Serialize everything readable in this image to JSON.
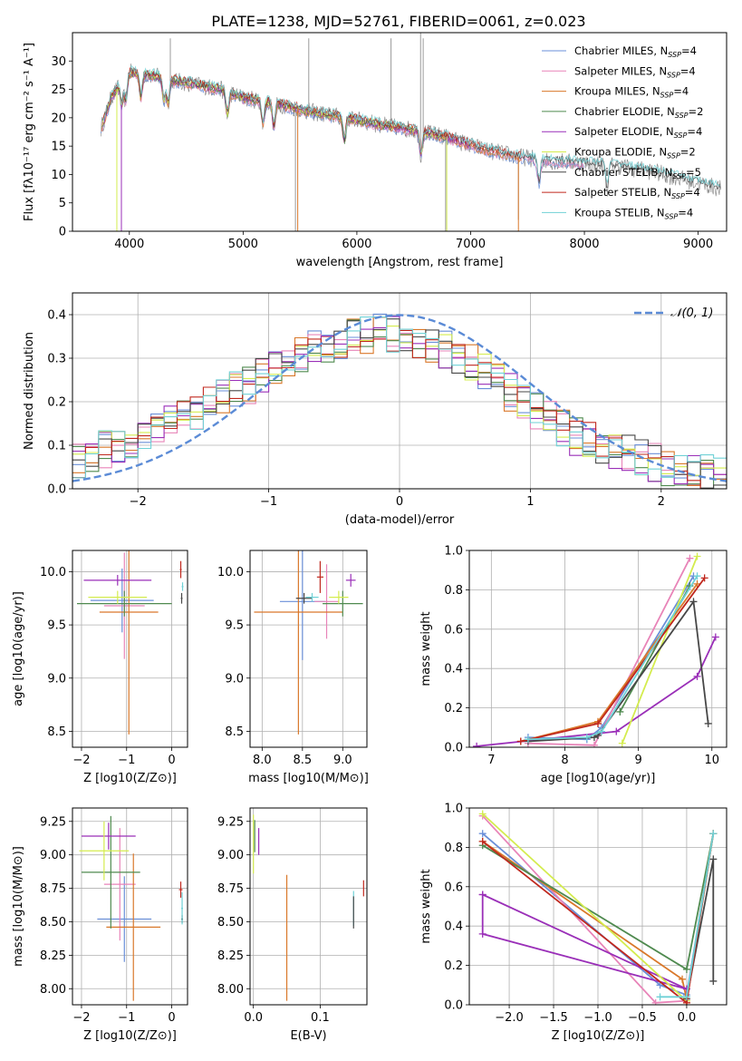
{
  "figure": {
    "title": "PLATE=1238, MJD=52761, FIBERID=0061, z=0.023"
  },
  "series_names": [
    "Chabrier MILES",
    "Salpeter MILES",
    "Kroupa MILES",
    "Chabrier ELODIE",
    "Salpeter ELODIE",
    "Kroupa ELODIE",
    "Chabrier STELIB",
    "Salpeter STELIB",
    "Kroupa STELIB"
  ],
  "series_colors": [
    "#6a8fd8",
    "#e884b8",
    "#d9782a",
    "#4f8a4f",
    "#9a2fb8",
    "#d4ec4e",
    "#474747",
    "#c0281e",
    "#6fd1d6"
  ],
  "chart_data": [
    {
      "id": "spectrum",
      "type": "line",
      "xlabel": "wavelength [Angstrom, rest frame]",
      "ylabel": "Flux [fλ10⁻¹⁷ erg cm⁻² s⁻¹ A⁻¹]",
      "xlim": [
        3500,
        9250
      ],
      "ylim": [
        0,
        35
      ],
      "xticks": [
        4000,
        5000,
        6000,
        7000,
        8000,
        9000
      ],
      "yticks": [
        0,
        5,
        10,
        15,
        20,
        25,
        30
      ],
      "legend": [
        "Chabrier MILES, N_SSP=4",
        "Salpeter MILES, N_SSP=4",
        "Kroupa MILES, N_SSP=4",
        "Chabrier ELODIE, N_SSP=2",
        "Salpeter ELODIE, N_SSP=4",
        "Kroupa ELODIE, N_SSP=2",
        "Chabrier STELIB, N_SSP=5",
        "Salpeter STELIB, N_SSP=4",
        "Kroupa STELIB, N_SSP=4"
      ],
      "legend_position": "top-right",
      "continuum": {
        "x": [
          3750,
          3850,
          4000,
          4200,
          4400,
          4600,
          4800,
          5000,
          5300,
          5600,
          5900,
          6200,
          6500,
          6800,
          7100,
          7400,
          7700,
          8000,
          8300,
          8600,
          8900,
          9200
        ],
        "y": [
          18,
          24,
          28,
          27.5,
          26.5,
          25.8,
          25,
          23.5,
          22.5,
          21,
          20,
          18.8,
          17.8,
          16.5,
          14.5,
          13.2,
          12.4,
          12,
          11.5,
          10.5,
          9,
          7.5
        ]
      }
    },
    {
      "id": "residuals",
      "type": "line",
      "xlabel": "(data-model)/error",
      "ylabel": "Normed distribution",
      "xlim": [
        -2.5,
        2.5
      ],
      "ylim": [
        0,
        0.45
      ],
      "xticks": [
        -2,
        -1,
        0,
        1,
        2
      ],
      "yticks": [
        0.0,
        0.1,
        0.2,
        0.3,
        0.4
      ],
      "grid": true,
      "legend": [
        "𝒩(0, 1)"
      ],
      "legend_position": "top-right",
      "bins": [
        -2.5,
        -2.4,
        -2.3,
        -2.2,
        -2.1,
        -2.0,
        -1.9,
        -1.8,
        -1.7,
        -1.6,
        -1.5,
        -1.4,
        -1.3,
        -1.2,
        -1.1,
        -1.0,
        -0.9,
        -0.8,
        -0.7,
        -0.6,
        -0.5,
        -0.4,
        -0.3,
        -0.2,
        -0.1,
        0.0,
        0.1,
        0.2,
        0.3,
        0.4,
        0.5,
        0.6,
        0.7,
        0.8,
        0.9,
        1.0,
        1.1,
        1.2,
        1.3,
        1.4,
        1.5,
        1.6,
        1.7,
        1.8,
        1.9,
        2.0,
        2.1,
        2.2,
        2.3,
        2.4,
        2.5
      ],
      "envelope": [
        0.06,
        0.08,
        0.09,
        0.09,
        0.1,
        0.12,
        0.13,
        0.15,
        0.16,
        0.17,
        0.19,
        0.21,
        0.23,
        0.24,
        0.26,
        0.28,
        0.3,
        0.31,
        0.32,
        0.33,
        0.34,
        0.35,
        0.355,
        0.36,
        0.355,
        0.35,
        0.34,
        0.33,
        0.32,
        0.31,
        0.29,
        0.27,
        0.25,
        0.22,
        0.2,
        0.18,
        0.16,
        0.14,
        0.12,
        0.11,
        0.1,
        0.09,
        0.08,
        0.07,
        0.06,
        0.05,
        0.05,
        0.04,
        0.035,
        0.03
      ]
    },
    {
      "id": "age-vs-Z",
      "type": "scatter",
      "xlabel": "Z [log10(Z/Z⊙)]",
      "ylabel": "age  [log10(age/yr)]",
      "xlim": [
        -2.2,
        0.35
      ],
      "ylim": [
        8.35,
        10.2
      ],
      "xticks": [
        -2,
        -1,
        0
      ],
      "yticks": [
        8.5,
        9.0,
        9.5,
        10.0
      ],
      "grid": true,
      "points": [
        {
          "x": -1.1,
          "y": 9.73,
          "xerr": 0.7,
          "yerr": 0.3
        },
        {
          "x": -1.05,
          "y": 9.68,
          "xerr": 0.45,
          "yerr": 0.5
        },
        {
          "x": -0.95,
          "y": 9.62,
          "xerr": 0.65,
          "yerr": 1.15
        },
        {
          "x": -1.05,
          "y": 9.7,
          "xerr": 1.05,
          "yerr": 0.12
        },
        {
          "x": -1.2,
          "y": 9.92,
          "xerr": 0.75,
          "yerr": 0.05
        },
        {
          "x": -1.2,
          "y": 9.76,
          "xerr": 0.65,
          "yerr": 0.06
        },
        {
          "x": 0.22,
          "y": 9.75,
          "xerr": 0.02,
          "yerr": 0.05
        },
        {
          "x": 0.2,
          "y": 10.02,
          "xerr": 0.02,
          "yerr": 0.08
        },
        {
          "x": 0.24,
          "y": 9.86,
          "xerr": 0.02,
          "yerr": 0.04
        }
      ]
    },
    {
      "id": "age-vs-mass",
      "type": "scatter",
      "xlabel": "mass [log10(M/M⊙)]",
      "ylabel": "",
      "xlim": [
        7.85,
        9.3
      ],
      "ylim": [
        8.35,
        10.2
      ],
      "xticks": [
        8.0,
        8.5,
        9.0
      ],
      "yticks": [
        8.5,
        9.0,
        9.5,
        10.0
      ],
      "grid": true,
      "points": [
        {
          "x": 8.5,
          "y": 9.72,
          "xerr": 0.28,
          "yerr": 0.55
        },
        {
          "x": 8.8,
          "y": 9.72,
          "xerr": 0.15,
          "yerr": 0.35
        },
        {
          "x": 8.45,
          "y": 9.62,
          "xerr": 0.55,
          "yerr": 1.15
        },
        {
          "x": 9.0,
          "y": 9.7,
          "xerr": 0.25,
          "yerr": 0.12
        },
        {
          "x": 9.1,
          "y": 9.92,
          "xerr": 0.06,
          "yerr": 0.06
        },
        {
          "x": 8.95,
          "y": 9.76,
          "xerr": 0.12,
          "yerr": 0.06
        },
        {
          "x": 8.52,
          "y": 9.75,
          "xerr": 0.1,
          "yerr": 0.05
        },
        {
          "x": 8.72,
          "y": 9.95,
          "xerr": 0.04,
          "yerr": 0.15
        },
        {
          "x": 8.62,
          "y": 9.76,
          "xerr": 0.08,
          "yerr": 0.04
        }
      ]
    },
    {
      "id": "weight-vs-age",
      "type": "line",
      "xlabel": "age  [log10(age/yr)]",
      "ylabel": "mass weight",
      "xlim": [
        6.7,
        10.2
      ],
      "ylim": [
        0.0,
        1.0
      ],
      "xticks": [
        7,
        8,
        9,
        10
      ],
      "yticks": [
        0.0,
        0.2,
        0.4,
        0.6,
        0.8,
        1.0
      ],
      "grid": true,
      "series": [
        {
          "x": [
            7.5,
            8.3,
            8.5,
            9.75
          ],
          "y": [
            0.05,
            0.04,
            0.1,
            0.87
          ]
        },
        {
          "x": [
            7.5,
            8.4,
            9.7
          ],
          "y": [
            0.02,
            0.01,
            0.96
          ]
        },
        {
          "x": [
            7.4,
            8.45,
            9.8
          ],
          "y": [
            0.03,
            0.13,
            0.83
          ]
        },
        {
          "x": [
            8.75,
            9.7
          ],
          "y": [
            0.18,
            0.82
          ]
        },
        {
          "x": [
            6.8,
            8.7,
            9.8,
            10.05
          ],
          "y": [
            0.005,
            0.08,
            0.36,
            0.56
          ]
        },
        {
          "x": [
            8.78,
            9.8
          ],
          "y": [
            0.02,
            0.97
          ]
        },
        {
          "x": [
            7.5,
            8.4,
            8.45,
            9.75,
            9.95
          ],
          "y": [
            0.03,
            0.05,
            0.06,
            0.74,
            0.12
          ]
        },
        {
          "x": [
            7.4,
            8.45,
            9.9
          ],
          "y": [
            0.03,
            0.12,
            0.86
          ]
        },
        {
          "x": [
            7.5,
            8.3,
            8.5,
            9.8
          ],
          "y": [
            0.04,
            0.05,
            0.08,
            0.87
          ]
        }
      ]
    },
    {
      "id": "mass-vs-Z",
      "type": "scatter",
      "xlabel": "Z [log10(Z/Z⊙)]",
      "ylabel": "mass [log10(M/M⊙)]",
      "xlim": [
        -2.2,
        0.35
      ],
      "ylim": [
        7.88,
        9.35
      ],
      "xticks": [
        -2,
        -1,
        0
      ],
      "yticks": [
        8.0,
        8.25,
        8.5,
        8.75,
        9.0,
        9.25
      ],
      "grid": true,
      "points": [
        {
          "x": -1.05,
          "y": 8.52,
          "xerr": 0.6,
          "yerr": 0.32
        },
        {
          "x": -1.15,
          "y": 8.78,
          "xerr": 0.35,
          "yerr": 0.42
        },
        {
          "x": -0.85,
          "y": 8.46,
          "xerr": 0.6,
          "yerr": 0.55
        },
        {
          "x": -1.35,
          "y": 8.87,
          "xerr": 0.65,
          "yerr": 0.42
        },
        {
          "x": -1.4,
          "y": 9.14,
          "xerr": 0.6,
          "yerr": 0.1
        },
        {
          "x": -1.5,
          "y": 9.03,
          "xerr": 0.55,
          "yerr": 0.22
        },
        {
          "x": 0.23,
          "y": 8.52,
          "xerr": 0.02,
          "yerr": 0.03
        },
        {
          "x": 0.2,
          "y": 8.74,
          "xerr": 0.04,
          "yerr": 0.06
        },
        {
          "x": 0.23,
          "y": 8.6,
          "xerr": 0.02,
          "yerr": 0.12
        }
      ]
    },
    {
      "id": "mass-vs-ebv",
      "type": "scatter",
      "xlabel": "E(B-V)",
      "ylabel": "",
      "xlim": [
        -0.005,
        0.17
      ],
      "ylim": [
        7.88,
        9.35
      ],
      "xticks": [
        0.0,
        0.1
      ],
      "yticks": [
        8.0,
        8.25,
        8.5,
        8.75,
        9.0,
        9.25
      ],
      "grid": true,
      "points": [
        {
          "x": 0.0,
          "y": 9.08,
          "xerr": 0.0,
          "yerr": 0.22
        },
        {
          "x": 0.002,
          "y": 9.14,
          "xerr": 0.0,
          "yerr": 0.12
        },
        {
          "x": 0.008,
          "y": 9.1,
          "xerr": 0.0,
          "yerr": 0.1
        },
        {
          "x": 0.05,
          "y": 8.38,
          "xerr": 0.0,
          "yerr": 0.47
        },
        {
          "x": 0.15,
          "y": 8.6,
          "xerr": 0.0,
          "yerr": 0.13
        },
        {
          "x": 0.15,
          "y": 8.57,
          "xerr": 0.0,
          "yerr": 0.12
        },
        {
          "x": 0.165,
          "y": 8.75,
          "xerr": 0.0,
          "yerr": 0.06
        }
      ]
    },
    {
      "id": "weight-vs-Z",
      "type": "line",
      "xlabel": "Z [log10(Z/Z⊙)]",
      "ylabel": "mass weight",
      "xlim": [
        -2.45,
        0.45
      ],
      "ylim": [
        0.0,
        1.0
      ],
      "xticks": [
        -2.0,
        -1.5,
        -1.0,
        -0.5,
        0.0
      ],
      "yticks": [
        0.0,
        0.2,
        0.4,
        0.6,
        0.8,
        1.0
      ],
      "grid": true,
      "series": [
        {
          "x": [
            -2.3,
            -0.3,
            0.0,
            0.3
          ],
          "y": [
            0.87,
            0.1,
            0.05,
            0.87
          ]
        },
        {
          "x": [
            -2.3,
            -0.35,
            0.0,
            0.3
          ],
          "y": [
            0.96,
            0.01,
            0.02,
            0.87
          ]
        },
        {
          "x": [
            -2.3,
            -0.05,
            0.0,
            0.3
          ],
          "y": [
            0.83,
            0.13,
            0.03,
            0.87
          ]
        },
        {
          "x": [
            -2.3,
            0.0,
            0.3
          ],
          "y": [
            0.81,
            0.18,
            0.87
          ]
        },
        {
          "x": [
            -2.3,
            -2.3,
            0.0,
            -2.3
          ],
          "y": [
            0.56,
            0.36,
            0.08,
            0.56
          ]
        },
        {
          "x": [
            -2.3,
            0.0,
            0.3
          ],
          "y": [
            0.97,
            0.02,
            0.87
          ]
        },
        {
          "x": [
            0.0,
            0.3,
            0.3
          ],
          "y": [
            0.03,
            0.74,
            0.12
          ]
        },
        {
          "x": [
            -2.3,
            0.0,
            0.3
          ],
          "y": [
            0.83,
            0.01,
            0.87
          ]
        },
        {
          "x": [
            -0.3,
            0.0,
            0.3
          ],
          "y": [
            0.04,
            0.04,
            0.87
          ]
        }
      ]
    }
  ]
}
